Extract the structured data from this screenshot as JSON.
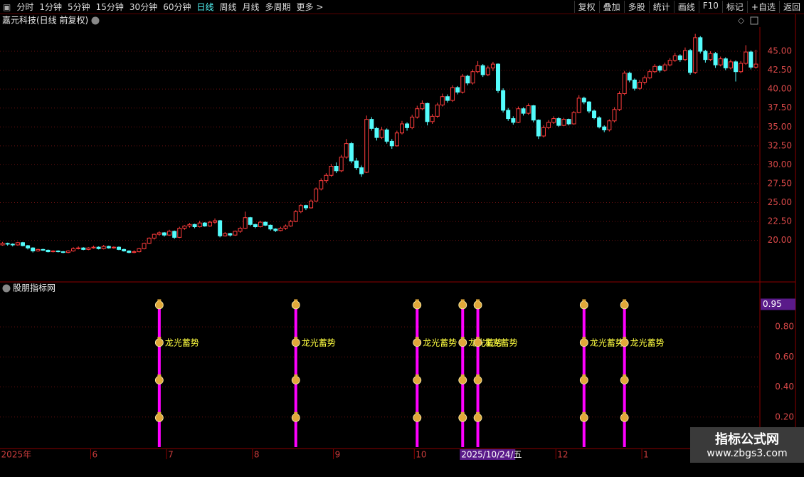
{
  "toolbar": {
    "periods": [
      "分时",
      "1分钟",
      "5分钟",
      "15分钟",
      "30分钟",
      "60分钟",
      "日线",
      "周线",
      "月线",
      "多周期",
      "更多 >"
    ],
    "active_period_index": 6,
    "tools": [
      "复权",
      "叠加",
      "多股",
      "统计",
      "画线",
      "F10",
      "标记",
      "+自选",
      "返回"
    ]
  },
  "chart_data": [
    {
      "type": "candlestick",
      "title": "嘉元科技(日线 前复权)",
      "up_color": "#ff3c3c",
      "down_color": "#54fcfc",
      "grid": true,
      "highlight_index": 91,
      "ylim": [
        14.6,
        48.2
      ],
      "yticks": [
        {
          "value": 20,
          "label": "20.00"
        },
        {
          "value": 22.5,
          "label": "22.50"
        },
        {
          "value": 25,
          "label": "25.00"
        },
        {
          "value": 27.5,
          "label": "27.50"
        },
        {
          "value": 30,
          "label": "30.00"
        },
        {
          "value": 32.5,
          "label": "32.50"
        },
        {
          "value": 35,
          "label": "35.00"
        },
        {
          "value": 37.5,
          "label": "37.50"
        },
        {
          "value": 40,
          "label": "40.00"
        },
        {
          "value": 42.5,
          "label": "42.50"
        },
        {
          "value": 45,
          "label": "45.00"
        }
      ],
      "categories": [
        "2025年",
        null,
        null,
        null,
        null,
        null,
        null,
        null,
        null,
        null,
        null,
        null,
        null,
        null,
        null,
        null,
        null,
        null,
        "6",
        null,
        null,
        null,
        null,
        null,
        null,
        null,
        null,
        null,
        null,
        null,
        null,
        null,
        null,
        "7",
        null,
        null,
        null,
        null,
        null,
        null,
        null,
        null,
        null,
        null,
        null,
        null,
        null,
        null,
        null,
        null,
        "8",
        null,
        null,
        null,
        null,
        null,
        null,
        null,
        null,
        null,
        null,
        null,
        null,
        null,
        null,
        null,
        "9",
        null,
        null,
        null,
        null,
        null,
        null,
        null,
        null,
        null,
        null,
        null,
        null,
        null,
        null,
        null,
        "10",
        null,
        null,
        null,
        null,
        null,
        null,
        null,
        null,
        "2025/10/24/五",
        null,
        null,
        null,
        null,
        null,
        null,
        null,
        null,
        null,
        null,
        null,
        null,
        null,
        null,
        null,
        null,
        null,
        null,
        "12",
        null,
        null,
        null,
        null,
        null,
        null,
        null,
        null,
        null,
        null,
        null,
        null,
        null,
        null,
        null,
        null,
        "1",
        null,
        null,
        null,
        null,
        null,
        null,
        null,
        null,
        null,
        null,
        null,
        null,
        null,
        null,
        null,
        null,
        null,
        null,
        null,
        null,
        null,
        null
      ],
      "candles": [
        [
          19.4,
          19.8,
          19.3,
          19.6
        ],
        [
          19.6,
          19.7,
          19.3,
          19.5
        ],
        [
          19.5,
          19.6,
          19.2,
          19.4
        ],
        [
          19.4,
          19.8,
          19.3,
          19.7
        ],
        [
          19.7,
          19.8,
          19.2,
          19.3
        ],
        [
          19.3,
          19.4,
          18.8,
          19.0
        ],
        [
          19.0,
          19.1,
          18.4,
          18.6
        ],
        [
          18.6,
          18.9,
          18.5,
          18.8
        ],
        [
          18.8,
          18.9,
          18.6,
          18.7
        ],
        [
          18.7,
          18.8,
          18.4,
          18.5
        ],
        [
          18.5,
          18.7,
          18.4,
          18.6
        ],
        [
          18.6,
          18.7,
          18.4,
          18.5
        ],
        [
          18.5,
          18.6,
          18.3,
          18.4
        ],
        [
          18.4,
          18.7,
          18.3,
          18.6
        ],
        [
          18.6,
          19.1,
          18.5,
          18.9
        ],
        [
          18.9,
          19.2,
          18.8,
          19.0
        ],
        [
          19.0,
          19.1,
          18.7,
          18.8
        ],
        [
          18.8,
          19.1,
          18.7,
          19.0
        ],
        [
          19.0,
          19.3,
          18.9,
          19.1
        ],
        [
          19.1,
          19.2,
          18.8,
          18.9
        ],
        [
          18.9,
          19.4,
          18.8,
          19.2
        ],
        [
          19.2,
          19.3,
          18.9,
          19.0
        ],
        [
          19.0,
          19.2,
          18.9,
          19.1
        ],
        [
          19.1,
          19.2,
          18.7,
          18.8
        ],
        [
          18.8,
          18.9,
          18.5,
          18.6
        ],
        [
          18.6,
          18.7,
          18.3,
          18.4
        ],
        [
          18.4,
          18.7,
          18.3,
          18.5
        ],
        [
          18.5,
          19.0,
          18.4,
          18.9
        ],
        [
          18.9,
          19.7,
          18.8,
          19.6
        ],
        [
          19.6,
          20.4,
          19.5,
          20.3
        ],
        [
          20.3,
          20.9,
          20.1,
          20.8
        ],
        [
          20.8,
          21.2,
          20.6,
          21.0
        ],
        [
          21.0,
          21.1,
          20.5,
          20.7
        ],
        [
          20.7,
          21.4,
          20.6,
          21.2
        ],
        [
          21.2,
          21.3,
          20.2,
          20.4
        ],
        [
          20.4,
          21.8,
          20.3,
          21.6
        ],
        [
          21.6,
          22.0,
          21.4,
          21.9
        ],
        [
          21.9,
          22.3,
          21.7,
          22.1
        ],
        [
          22.1,
          22.2,
          21.6,
          21.8
        ],
        [
          21.8,
          22.6,
          21.7,
          22.3
        ],
        [
          22.3,
          22.4,
          21.8,
          21.9
        ],
        [
          21.9,
          22.6,
          21.8,
          22.4
        ],
        [
          22.4,
          22.9,
          22.2,
          22.6
        ],
        [
          22.6,
          22.7,
          20.4,
          20.6
        ],
        [
          20.6,
          21.1,
          20.5,
          20.9
        ],
        [
          20.9,
          21.0,
          20.5,
          20.7
        ],
        [
          20.7,
          21.3,
          20.6,
          21.2
        ],
        [
          21.2,
          21.8,
          21.0,
          21.6
        ],
        [
          21.6,
          23.8,
          21.5,
          23.0
        ],
        [
          23.0,
          23.1,
          21.9,
          22.1
        ],
        [
          22.1,
          22.2,
          21.6,
          21.8
        ],
        [
          21.8,
          22.6,
          21.7,
          22.4
        ],
        [
          22.4,
          22.5,
          21.9,
          22.0
        ],
        [
          22.0,
          22.1,
          21.3,
          21.5
        ],
        [
          21.5,
          21.6,
          21.1,
          21.3
        ],
        [
          21.3,
          21.8,
          21.2,
          21.6
        ],
        [
          21.6,
          22.1,
          21.4,
          21.9
        ],
        [
          21.9,
          22.7,
          21.8,
          22.5
        ],
        [
          22.5,
          24.0,
          22.4,
          23.8
        ],
        [
          23.8,
          24.8,
          23.6,
          24.6
        ],
        [
          24.6,
          24.7,
          24.0,
          24.3
        ],
        [
          24.3,
          25.4,
          24.2,
          25.2
        ],
        [
          25.2,
          27.0,
          25.1,
          26.8
        ],
        [
          26.8,
          28.2,
          26.6,
          27.9
        ],
        [
          27.9,
          28.9,
          27.6,
          28.6
        ],
        [
          28.6,
          30.1,
          28.4,
          29.8
        ],
        [
          29.8,
          30.3,
          28.9,
          29.2
        ],
        [
          29.2,
          31.3,
          29.0,
          31.0
        ],
        [
          31.0,
          33.4,
          30.8,
          32.8
        ],
        [
          32.8,
          33.0,
          30.2,
          30.5
        ],
        [
          30.5,
          30.9,
          29.3,
          29.6
        ],
        [
          29.6,
          29.9,
          28.4,
          28.8
        ],
        [
          29.0,
          36.5,
          28.9,
          36.0
        ],
        [
          36.0,
          36.3,
          34.5,
          34.8
        ],
        [
          34.8,
          35.0,
          33.2,
          33.6
        ],
        [
          33.6,
          35.0,
          33.4,
          34.6
        ],
        [
          34.6,
          34.8,
          32.8,
          33.1
        ],
        [
          33.1,
          33.4,
          32.1,
          32.5
        ],
        [
          32.5,
          34.5,
          32.4,
          34.2
        ],
        [
          34.2,
          35.8,
          34.0,
          35.4
        ],
        [
          35.4,
          35.6,
          34.5,
          34.9
        ],
        [
          34.9,
          36.6,
          34.7,
          36.3
        ],
        [
          36.3,
          37.8,
          36.1,
          37.4
        ],
        [
          37.4,
          38.5,
          37.2,
          38.1
        ],
        [
          38.1,
          38.2,
          35.2,
          35.7
        ],
        [
          35.7,
          36.7,
          35.4,
          36.4
        ],
        [
          36.4,
          38.2,
          36.2,
          37.9
        ],
        [
          37.9,
          39.4,
          37.7,
          39.0
        ],
        [
          39.0,
          39.3,
          38.2,
          38.5
        ],
        [
          38.5,
          40.5,
          38.3,
          40.2
        ],
        [
          40.2,
          40.4,
          39.3,
          39.6
        ],
        [
          39.6,
          42.0,
          39.4,
          41.7
        ],
        [
          41.7,
          41.9,
          40.5,
          40.8
        ],
        [
          40.8,
          42.6,
          40.6,
          42.3
        ],
        [
          42.3,
          43.7,
          42.1,
          43.1
        ],
        [
          43.1,
          43.3,
          41.6,
          41.9
        ],
        [
          41.9,
          43.1,
          41.7,
          42.8
        ],
        [
          42.8,
          43.6,
          42.4,
          43.3
        ],
        [
          43.3,
          43.4,
          39.5,
          39.8
        ],
        [
          39.8,
          40.1,
          36.9,
          37.2
        ],
        [
          37.2,
          37.5,
          35.8,
          36.1
        ],
        [
          36.1,
          36.4,
          35.3,
          35.6
        ],
        [
          35.6,
          37.7,
          35.5,
          37.4
        ],
        [
          37.4,
          37.6,
          36.5,
          36.8
        ],
        [
          36.8,
          38.1,
          36.6,
          37.8
        ],
        [
          37.8,
          37.9,
          35.6,
          35.9
        ],
        [
          35.9,
          36.0,
          33.4,
          33.8
        ],
        [
          33.8,
          35.2,
          33.6,
          34.9
        ],
        [
          34.9,
          35.9,
          34.7,
          35.6
        ],
        [
          35.6,
          36.4,
          35.4,
          36.1
        ],
        [
          36.1,
          36.3,
          35.0,
          35.2
        ],
        [
          35.2,
          36.2,
          35.1,
          36.0
        ],
        [
          36.0,
          36.1,
          35.2,
          35.4
        ],
        [
          35.4,
          37.1,
          35.3,
          36.9
        ],
        [
          36.9,
          39.2,
          36.8,
          38.8
        ],
        [
          38.8,
          39.0,
          38.0,
          38.3
        ],
        [
          38.3,
          38.4,
          36.8,
          37.1
        ],
        [
          37.1,
          37.3,
          36.0,
          36.2
        ],
        [
          36.2,
          36.4,
          34.8,
          35.0
        ],
        [
          35.0,
          35.2,
          34.3,
          34.6
        ],
        [
          34.6,
          36.0,
          34.4,
          35.8
        ],
        [
          35.8,
          37.6,
          35.6,
          37.3
        ],
        [
          37.3,
          39.7,
          37.1,
          39.4
        ],
        [
          39.4,
          42.4,
          39.2,
          42.1
        ],
        [
          42.1,
          42.3,
          40.9,
          41.2
        ],
        [
          41.2,
          41.4,
          39.8,
          40.1
        ],
        [
          40.1,
          41.2,
          39.9,
          40.9
        ],
        [
          40.9,
          41.8,
          40.6,
          41.5
        ],
        [
          41.5,
          42.6,
          41.3,
          42.3
        ],
        [
          42.3,
          43.3,
          42.1,
          43.0
        ],
        [
          43.0,
          43.2,
          42.2,
          42.5
        ],
        [
          42.5,
          43.5,
          42.3,
          43.2
        ],
        [
          43.2,
          44.1,
          43.0,
          43.8
        ],
        [
          43.8,
          44.8,
          43.6,
          44.4
        ],
        [
          44.4,
          44.6,
          43.6,
          43.9
        ],
        [
          43.9,
          45.5,
          43.7,
          45.1
        ],
        [
          45.1,
          45.3,
          41.9,
          42.2
        ],
        [
          42.2,
          47.3,
          42.0,
          46.8
        ],
        [
          46.8,
          47.0,
          44.7,
          45.0
        ],
        [
          45.0,
          45.2,
          43.5,
          43.9
        ],
        [
          43.9,
          45.0,
          43.7,
          44.7
        ],
        [
          44.7,
          44.9,
          42.8,
          43.2
        ],
        [
          43.2,
          44.3,
          43.0,
          44.0
        ],
        [
          44.0,
          44.2,
          42.5,
          42.8
        ],
        [
          42.8,
          43.9,
          42.6,
          43.6
        ],
        [
          43.6,
          43.8,
          41.0,
          42.3
        ],
        [
          42.3,
          43.7,
          42.1,
          43.4
        ],
        [
          43.4,
          45.8,
          43.2,
          44.9
        ],
        [
          44.9,
          45.1,
          42.6,
          42.9
        ],
        [
          42.9,
          45.2,
          42.7,
          43.3
        ]
      ]
    },
    {
      "type": "signal",
      "title": "股朋指标网",
      "color": "#ff00ff",
      "label": "龙光蓄势",
      "label_level": 0.7,
      "current_value": 0.95,
      "signal_indices": [
        31,
        58,
        82,
        91,
        94,
        115,
        123
      ],
      "levels": [
        0.95,
        0.7,
        0.45,
        0.2
      ],
      "ylim": [
        0,
        1.08
      ],
      "yticks": [
        {
          "value": 0.2,
          "label": "0.20"
        },
        {
          "value": 0.4,
          "label": "0.40"
        },
        {
          "value": 0.6,
          "label": "0.60"
        },
        {
          "value": 0.8,
          "label": "0.80"
        }
      ]
    }
  ],
  "watermark": {
    "title": "指标公式网",
    "url": "www.zbgs3.com"
  }
}
